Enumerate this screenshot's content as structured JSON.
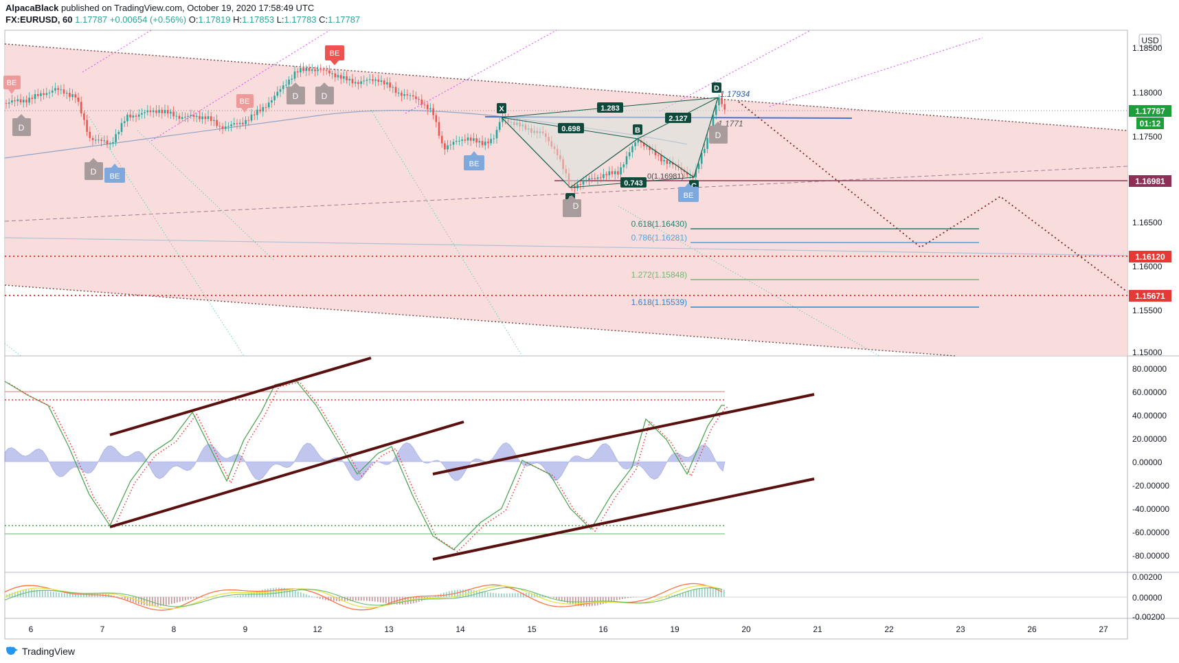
{
  "header": {
    "author": "AlpacaBlack",
    "published": "published on TradingView.com, October 19, 2020 17:58:49 UTC",
    "symbol": "FX:EURUSD, 60",
    "last": "1.17787",
    "change": "+0.00654 (+0.56%)",
    "o_label": "O:",
    "o": "1.17819",
    "h_label": "H:",
    "h": "1.17853",
    "l_label": "L:",
    "l": "1.17783",
    "c_label": "C:",
    "c": "1.17787"
  },
  "price_axis": {
    "currency": "USD",
    "ticks": [
      "1.18500",
      "1.18000",
      "1.17500",
      "1.16500",
      "1.16000",
      "1.15500",
      "1.15000"
    ],
    "current_price": "1.17787",
    "countdown": "01:12",
    "level_1": "1.16981",
    "level_2": "1.16120",
    "level_3": "1.15671"
  },
  "oscillator_axis": {
    "ticks": [
      "80.00000",
      "60.00000",
      "40.00000",
      "20.00000",
      "0.00000",
      "-20.00000",
      "-40.00000",
      "-60.00000",
      "-80.00000"
    ]
  },
  "macd_axis": {
    "ticks": [
      "0.00200",
      "0.00000",
      "-0.00200"
    ]
  },
  "time_axis": {
    "ticks": [
      "6",
      "7",
      "8",
      "9",
      "12",
      "13",
      "14",
      "15",
      "16",
      "19",
      "20",
      "21",
      "22",
      "23",
      "26",
      "27"
    ]
  },
  "pattern": {
    "points": [
      "X",
      "A",
      "B",
      "C",
      "D"
    ],
    "ratios": [
      "1.283",
      "0.698",
      "2.127",
      "0.743"
    ],
    "d_price": "1.17934",
    "d_price_2": "1.1771",
    "c_price": "0(1.16981)"
  },
  "fib": [
    {
      "label": "0.618(1.16430)",
      "color": "#1b7f6b"
    },
    {
      "label": "0.786(1.16281)",
      "color": "#4aa3df"
    },
    {
      "label": "1.272(1.15848)",
      "color": "#6fb66f"
    },
    {
      "label": "1.618(1.15539)",
      "color": "#2a85d0"
    }
  ],
  "markers": {
    "be": "BE",
    "d": "D"
  },
  "footer": {
    "brand": "TradingView"
  },
  "colors": {
    "bull": "#26a69a",
    "bear": "#ef5350",
    "channel_fill": "#f8d7d7",
    "pattern_green": "#0d5a45",
    "level_red": "#e53935",
    "level_maroon": "#8e2f57"
  }
}
